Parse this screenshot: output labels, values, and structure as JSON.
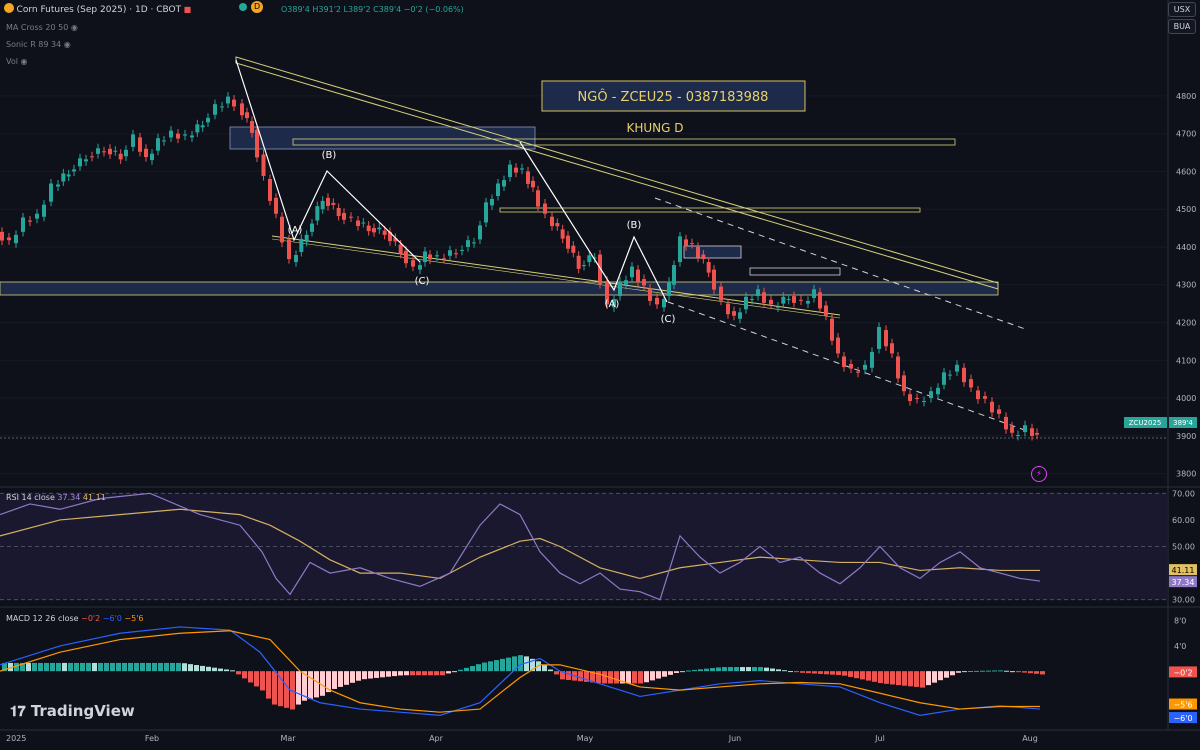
{
  "header": {
    "symbol_title": "Corn Futures (Sep 2025) · 1D · CBOT",
    "ohlc": {
      "open": "O389'4",
      "high": "H391'2",
      "low": "L389'2",
      "close": "C389'4",
      "change": "−0'2 (−0.06%)"
    },
    "badge": "D",
    "indicators": [
      "MA Cross 20 50",
      "Sonic R 89 34",
      "Vol"
    ]
  },
  "corner_buttons": [
    "USX",
    "BUA"
  ],
  "watermark": "TradingView",
  "colors": {
    "bg": "#0f111a",
    "up": "#26a69a",
    "down": "#ef5350",
    "line": "#d6d17a",
    "box": "#1e2a4a",
    "text": "#d1d4dc"
  },
  "chart_data": [
    {
      "type": "candlestick",
      "title": "Corn Futures (Sep 2025) · 1D · CBOT",
      "x_ticks": [
        "2025",
        "Feb",
        "Mar",
        "Apr",
        "May",
        "Jun",
        "Jul",
        "Aug"
      ],
      "y_ticks": [
        3800,
        3900,
        4000,
        4100,
        4200,
        4300,
        4400,
        4500,
        4600,
        4700,
        4800
      ],
      "y_tick_labels": [
        "3800",
        "3900",
        "4000",
        "4100",
        "4200",
        "4300",
        "4400",
        "4500",
        "4600",
        "4700",
        "4800"
      ],
      "ylim": [
        3730,
        4850
      ],
      "last_price_label": "389'4",
      "symbol_tag": "ZCU2025",
      "close_path": [
        [
          0,
          4440
        ],
        [
          14,
          4410
        ],
        [
          28,
          4470
        ],
        [
          42,
          4480
        ],
        [
          56,
          4560
        ],
        [
          72,
          4600
        ],
        [
          90,
          4640
        ],
        [
          108,
          4660
        ],
        [
          124,
          4640
        ],
        [
          138,
          4690
        ],
        [
          150,
          4630
        ],
        [
          162,
          4680
        ],
        [
          176,
          4700
        ],
        [
          190,
          4690
        ],
        [
          206,
          4730
        ],
        [
          220,
          4770
        ],
        [
          232,
          4790
        ],
        [
          240,
          4780
        ],
        [
          255,
          4710
        ],
        [
          268,
          4580
        ],
        [
          280,
          4480
        ],
        [
          294,
          4360
        ],
        [
          310,
          4440
        ],
        [
          326,
          4530
        ],
        [
          342,
          4490
        ],
        [
          356,
          4470
        ],
        [
          372,
          4450
        ],
        [
          388,
          4440
        ],
        [
          404,
          4390
        ],
        [
          418,
          4340
        ],
        [
          428,
          4380
        ],
        [
          442,
          4370
        ],
        [
          460,
          4390
        ],
        [
          478,
          4420
        ],
        [
          490,
          4510
        ],
        [
          502,
          4560
        ],
        [
          514,
          4610
        ],
        [
          526,
          4600
        ],
        [
          536,
          4550
        ],
        [
          550,
          4480
        ],
        [
          566,
          4430
        ],
        [
          582,
          4350
        ],
        [
          598,
          4380
        ],
        [
          612,
          4240
        ],
        [
          624,
          4300
        ],
        [
          636,
          4340
        ],
        [
          648,
          4290
        ],
        [
          662,
          4240
        ],
        [
          672,
          4300
        ],
        [
          684,
          4420
        ],
        [
          696,
          4400
        ],
        [
          712,
          4340
        ],
        [
          726,
          4250
        ],
        [
          738,
          4210
        ],
        [
          750,
          4260
        ],
        [
          762,
          4280
        ],
        [
          776,
          4240
        ],
        [
          792,
          4270
        ],
        [
          806,
          4250
        ],
        [
          818,
          4280
        ],
        [
          830,
          4210
        ],
        [
          842,
          4110
        ],
        [
          856,
          4070
        ],
        [
          870,
          4080
        ],
        [
          884,
          4180
        ],
        [
          896,
          4110
        ],
        [
          908,
          4010
        ],
        [
          922,
          3990
        ],
        [
          936,
          4010
        ],
        [
          948,
          4060
        ],
        [
          962,
          4080
        ],
        [
          976,
          4020
        ],
        [
          990,
          3990
        ],
        [
          1004,
          3950
        ],
        [
          1016,
          3900
        ],
        [
          1030,
          3920
        ],
        [
          1040,
          3895
        ]
      ],
      "annotations": {
        "box_title": "NGÔ - ZCEU25 - 0387183988",
        "frame_label": "KHUNG D",
        "wave_labels": [
          "(A)",
          "(B)",
          "(C)",
          "(A)",
          "(B)",
          "(C)"
        ]
      }
    },
    {
      "type": "line",
      "title": "RSI 14 close",
      "series": [
        {
          "name": "RSI",
          "last": 37.34
        },
        {
          "name": "RSI MA",
          "last": 41.11
        }
      ],
      "legend_values": [
        "37.34",
        "41.11"
      ],
      "y_ticks": [
        30,
        40,
        50,
        60,
        70
      ],
      "y_tick_labels": [
        "30.00",
        "",
        "50.00",
        "60.00",
        "70.00"
      ],
      "ylim": [
        28,
        72
      ],
      "rsi": [
        [
          0,
          62
        ],
        [
          30,
          66
        ],
        [
          60,
          64
        ],
        [
          100,
          68
        ],
        [
          150,
          70
        ],
        [
          200,
          62
        ],
        [
          240,
          58
        ],
        [
          262,
          48
        ],
        [
          276,
          38
        ],
        [
          290,
          32
        ],
        [
          310,
          44
        ],
        [
          330,
          40
        ],
        [
          360,
          42
        ],
        [
          390,
          38
        ],
        [
          420,
          35
        ],
        [
          450,
          40
        ],
        [
          480,
          58
        ],
        [
          500,
          66
        ],
        [
          520,
          62
        ],
        [
          540,
          48
        ],
        [
          560,
          40
        ],
        [
          580,
          36
        ],
        [
          600,
          40
        ],
        [
          620,
          34
        ],
        [
          640,
          33
        ],
        [
          660,
          30
        ],
        [
          680,
          54
        ],
        [
          700,
          46
        ],
        [
          720,
          40
        ],
        [
          740,
          44
        ],
        [
          760,
          50
        ],
        [
          780,
          44
        ],
        [
          800,
          46
        ],
        [
          820,
          40
        ],
        [
          840,
          36
        ],
        [
          860,
          42
        ],
        [
          880,
          50
        ],
        [
          900,
          42
        ],
        [
          920,
          38
        ],
        [
          940,
          44
        ],
        [
          960,
          48
        ],
        [
          980,
          42
        ],
        [
          1000,
          40
        ],
        [
          1020,
          38
        ],
        [
          1040,
          37
        ]
      ],
      "rsi_ma": [
        [
          0,
          54
        ],
        [
          60,
          60
        ],
        [
          120,
          62
        ],
        [
          180,
          64
        ],
        [
          240,
          62
        ],
        [
          270,
          58
        ],
        [
          300,
          52
        ],
        [
          330,
          45
        ],
        [
          360,
          40
        ],
        [
          400,
          40
        ],
        [
          440,
          38
        ],
        [
          480,
          46
        ],
        [
          520,
          52
        ],
        [
          540,
          53
        ],
        [
          560,
          50
        ],
        [
          600,
          42
        ],
        [
          640,
          38
        ],
        [
          680,
          42
        ],
        [
          720,
          44
        ],
        [
          760,
          46
        ],
        [
          800,
          45
        ],
        [
          840,
          44
        ],
        [
          880,
          44
        ],
        [
          920,
          41
        ],
        [
          960,
          42
        ],
        [
          1000,
          41
        ],
        [
          1040,
          41
        ]
      ]
    },
    {
      "type": "bar",
      "title": "MACD 12 26 close",
      "series": [
        {
          "name": "MACD",
          "last": -6.0
        },
        {
          "name": "Signal",
          "last": -5.6
        },
        {
          "name": "Histogram",
          "last": -0.2
        }
      ],
      "legend_values": [
        "−0'2",
        "−6'0",
        "−5'6"
      ],
      "y_ticks": [
        8,
        4,
        0,
        -4,
        -8
      ],
      "y_tick_labels": [
        "8'0",
        "4'0",
        "",
        "",
        ""
      ],
      "right_labels": [
        "−0'2",
        "−5'6",
        "−6'0"
      ],
      "ylim": [
        -9,
        10
      ],
      "macd": [
        [
          0,
          1
        ],
        [
          60,
          4
        ],
        [
          120,
          6
        ],
        [
          180,
          7
        ],
        [
          230,
          6.5
        ],
        [
          260,
          3
        ],
        [
          290,
          -3
        ],
        [
          320,
          -5
        ],
        [
          360,
          -6
        ],
        [
          400,
          -6.5
        ],
        [
          440,
          -7
        ],
        [
          480,
          -5
        ],
        [
          520,
          1
        ],
        [
          540,
          2
        ],
        [
          560,
          0
        ],
        [
          600,
          -2
        ],
        [
          640,
          -4
        ],
        [
          680,
          -3
        ],
        [
          720,
          -2
        ],
        [
          760,
          -1.5
        ],
        [
          800,
          -2
        ],
        [
          840,
          -2.5
        ],
        [
          880,
          -5
        ],
        [
          920,
          -7
        ],
        [
          960,
          -6
        ],
        [
          1000,
          -5.5
        ],
        [
          1040,
          -6
        ]
      ],
      "signal": [
        [
          0,
          0
        ],
        [
          60,
          3
        ],
        [
          120,
          5
        ],
        [
          180,
          6
        ],
        [
          230,
          6.4
        ],
        [
          270,
          5
        ],
        [
          300,
          0
        ],
        [
          330,
          -3
        ],
        [
          360,
          -5
        ],
        [
          400,
          -6
        ],
        [
          440,
          -6.5
        ],
        [
          480,
          -6
        ],
        [
          520,
          -1
        ],
        [
          540,
          1
        ],
        [
          560,
          1
        ],
        [
          600,
          -0.5
        ],
        [
          640,
          -2.5
        ],
        [
          680,
          -3
        ],
        [
          720,
          -2.5
        ],
        [
          760,
          -2
        ],
        [
          800,
          -1.8
        ],
        [
          840,
          -2
        ],
        [
          880,
          -3.5
        ],
        [
          920,
          -5
        ],
        [
          960,
          -6
        ],
        [
          1000,
          -5.6
        ],
        [
          1040,
          -5.6
        ]
      ]
    }
  ]
}
